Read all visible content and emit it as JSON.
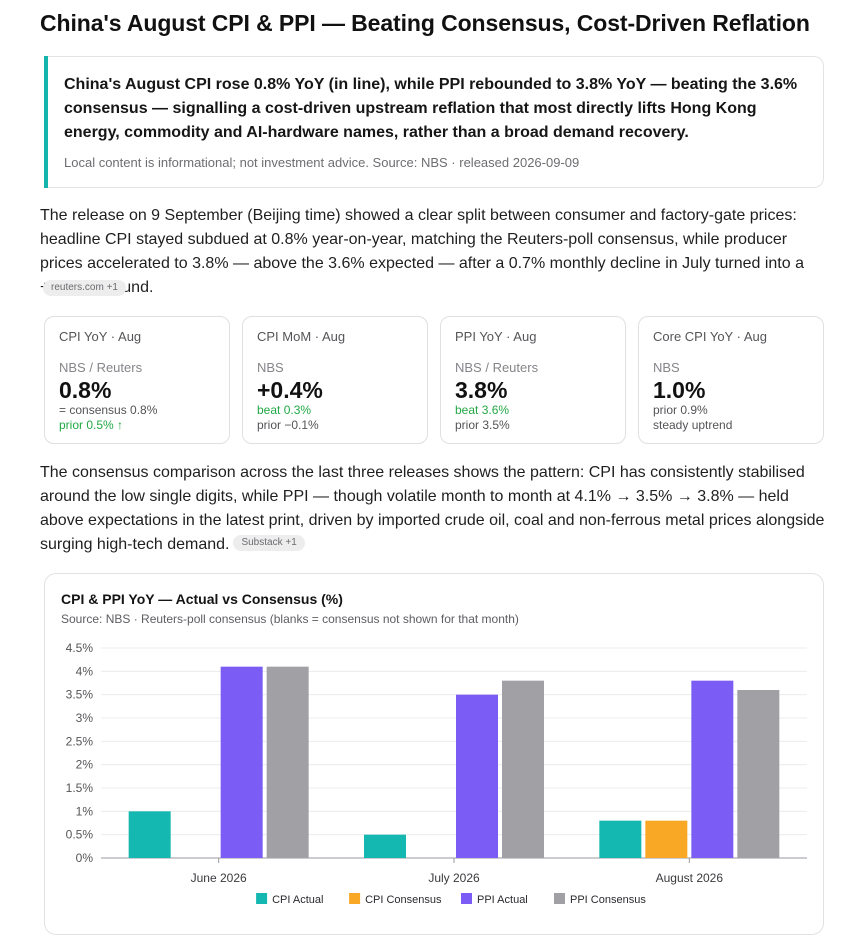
{
  "page": {
    "title": "China's August CPI & PPI — Beating Consensus, Cost-Driven Reflation"
  },
  "callout": {
    "text": "China's August CPI rose 0.8% YoY (in line), while PPI rebounded to 3.8% YoY — beating the 3.6% consensus — signalling a cost-driven upstream reflation that most directly lifts Hong Kong energy, commodity and AI-hardware names, rather than a broad demand recovery.",
    "note": "Local content is informational; not investment advice. Source: NBS · released 2026-09-09",
    "accent_color": "#14b3ab"
  },
  "paragraphs": {
    "p1": "The release on 9 September (Beijing time) showed a clear split between consumer and factory-gate prices: headline CPI stayed subdued at 0.8% year-on-year, matching the Reuters-poll consensus, while producer prices accelerated to 3.8% — above the 3.6% expected — after a 0.7% monthly decline in July turned into a +0.4% rebound.",
    "p1_source": "reuters.com +1",
    "p2": "The consensus comparison across the last three releases shows the pattern: CPI has consistently stabilised around the low single digits, while PPI — though volatile month to month at 4.1% → 3.5% → 3.8% — held above expectations in the latest print, driven by imported crude oil, coal and non-ferrous metal prices alongside surging high-tech demand.",
    "p2_source": "Substack +1"
  },
  "cards": [
    {
      "label": "CPI YoY · Aug",
      "source": "NBS / Reuters",
      "value": "0.8%",
      "line1": "= consensus 0.8%",
      "line2": "prior 0.5% ↑"
    },
    {
      "label": "CPI MoM · Aug",
      "source": "NBS",
      "value": "+0.4%",
      "line1": "beat 0.3%",
      "line2": "prior −0.1%"
    },
    {
      "label": "PPI YoY · Aug",
      "source": "NBS / Reuters",
      "value": "3.8%",
      "line1": "beat 3.6%",
      "line2": "prior 3.5%"
    },
    {
      "label": "Core CPI YoY · Aug",
      "source": "NBS",
      "value": "1.0%",
      "line1": "prior 0.9%",
      "line2": "steady uptrend"
    }
  ],
  "status_colors": {
    "positive": "#22a845"
  },
  "chart": {
    "title": "CPI & PPI YoY — Actual vs Consensus (%)",
    "subtitle": "Source: NBS · Reuters-poll consensus (blanks = consensus not shown for that month)"
  },
  "chart_data": {
    "type": "bar",
    "title": "CPI & PPI YoY — Actual vs Consensus (%)",
    "categories": [
      "June 2026",
      "July 2026",
      "August 2026"
    ],
    "series": [
      {
        "name": "CPI Actual",
        "color": "#14b8b0",
        "values": [
          1.0,
          0.5,
          0.8
        ]
      },
      {
        "name": "CPI Consensus",
        "color": "#f9a825",
        "values": [
          null,
          null,
          0.8
        ]
      },
      {
        "name": "PPI Actual",
        "color": "#7b5cf5",
        "values": [
          4.1,
          3.5,
          3.8
        ]
      },
      {
        "name": "PPI Consensus",
        "color": "#a0a0a5",
        "values": [
          4.1,
          3.8,
          3.6
        ]
      }
    ],
    "y_ticks": [
      "0%",
      "0.5%",
      "1%",
      "1.5%",
      "2%",
      "2.5%",
      "3%",
      "3.5%",
      "4%",
      "4.5%"
    ],
    "ylim": [
      0,
      4.5
    ],
    "grid": true,
    "legend_position": "bottom"
  }
}
